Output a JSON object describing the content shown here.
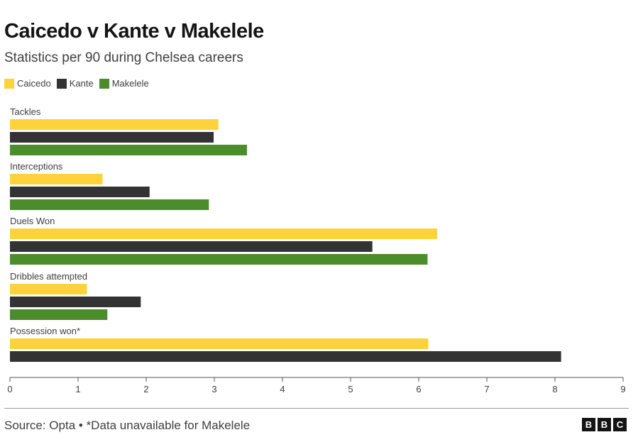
{
  "chart_data": {
    "type": "bar",
    "orientation": "horizontal",
    "title": "Caicedo v Kante v Makelele",
    "subtitle": "Statistics per 90 during Chelsea careers",
    "categories": [
      "Tackles",
      "Interceptions",
      "Duels Won",
      "Dribbles attempted",
      "Possession won*"
    ],
    "series": [
      {
        "name": "Caicedo",
        "color": "#FDD23A",
        "values": [
          3.06,
          1.36,
          6.27,
          1.13,
          6.14
        ]
      },
      {
        "name": "Kante",
        "color": "#333333",
        "values": [
          2.99,
          2.05,
          5.32,
          1.92,
          8.09
        ]
      },
      {
        "name": "Makelele",
        "color": "#4B8C2B",
        "values": [
          3.48,
          2.92,
          6.13,
          1.43,
          null
        ]
      }
    ],
    "xlim": [
      0,
      9
    ],
    "xticks": [
      "0",
      "1",
      "2",
      "3",
      "4",
      "5",
      "6",
      "7",
      "8",
      "9"
    ],
    "legend_position": "top-left",
    "grid": false
  },
  "footer": {
    "source": "Source: Opta • *Data unavailable for Makelele",
    "logo": [
      "B",
      "B",
      "C"
    ]
  }
}
